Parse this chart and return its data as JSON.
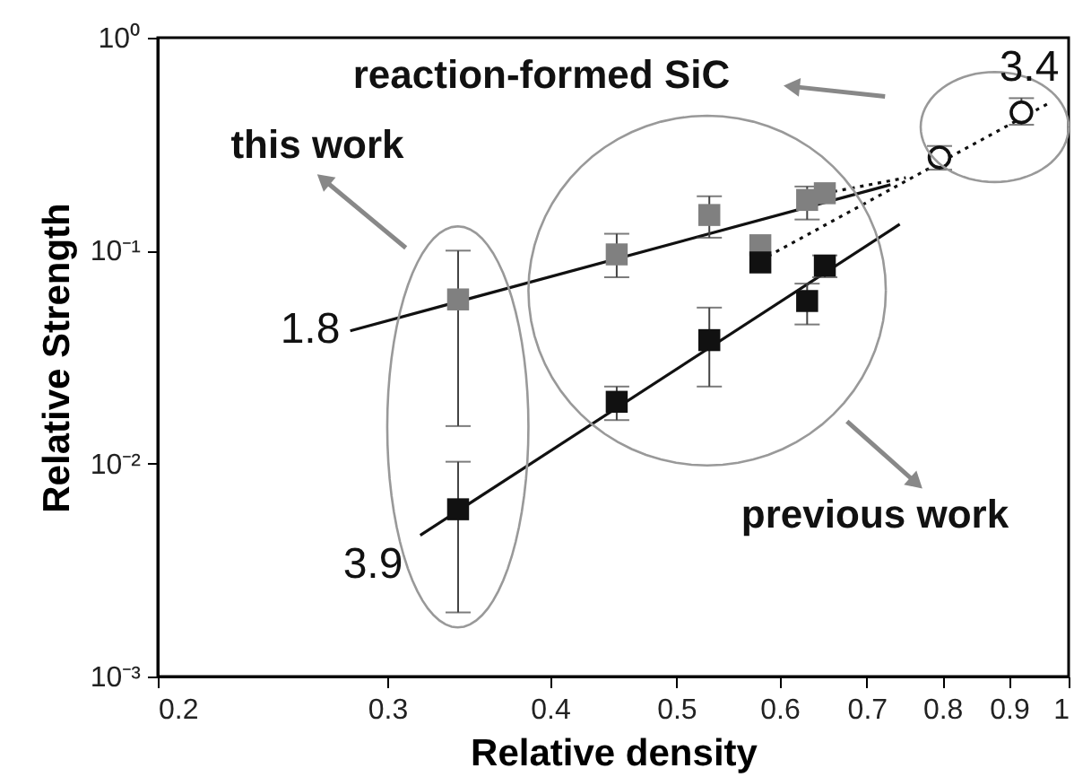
{
  "chart_data": {
    "type": "scatter",
    "xlabel": "Relative density",
    "ylabel": "Relative Strength",
    "log": "xy",
    "grid": false,
    "xlim": [
      0.2,
      1
    ],
    "xticks": [
      0.2,
      0.3,
      0.4,
      0.5,
      0.6,
      0.7,
      0.8,
      0.9,
      1
    ],
    "ylim": [
      0.001,
      1
    ],
    "yticks": [
      {
        "value": 0.001,
        "label": "10⁻³"
      },
      {
        "value": 0.01,
        "label": "10⁻²"
      },
      {
        "value": 0.1,
        "label": "10⁻¹"
      },
      {
        "value": 1,
        "label": "10⁰"
      }
    ],
    "series": [
      {
        "type": "line",
        "color": "#111111",
        "line_style": "solid",
        "marker": "none",
        "x": [
          0.281,
          0.73
        ],
        "values": [
          0.042,
          0.204
        ]
      },
      {
        "type": "line",
        "color": "#111111",
        "line_style": "solid",
        "marker": "none",
        "x": [
          0.318,
          0.742
        ],
        "values": [
          0.0046,
          0.133
        ]
      },
      {
        "type": "line",
        "color": "#111111",
        "line_style": "dotted",
        "marker": "none",
        "x": [
          0.58,
          0.97
        ],
        "values": [
          0.09,
          0.5
        ]
      },
      {
        "type": "line",
        "color": "#111111",
        "line_style": "dotted",
        "marker": "none",
        "x": [
          0.65,
          0.75
        ],
        "values": [
          0.186,
          0.22
        ]
      },
      {
        "type": "scatter",
        "color": "#808080",
        "marker": "square",
        "x": [
          0.34,
          0.45,
          0.53,
          0.58,
          0.63,
          0.65
        ],
        "values": [
          0.059,
          0.096,
          0.147,
          0.106,
          0.173,
          0.186
        ],
        "errors": [
          [
            0.015,
            0.1
          ],
          [
            0.075,
            0.12
          ],
          [
            0.115,
            0.18
          ],
          null,
          [
            0.14,
            0.2
          ],
          null
        ]
      },
      {
        "type": "scatter",
        "color": "#111111",
        "marker": "square",
        "x": [
          0.34,
          0.45,
          0.53,
          0.58,
          0.63,
          0.65
        ],
        "values": [
          0.0061,
          0.0195,
          0.038,
          0.088,
          0.058,
          0.085
        ],
        "errors": [
          [
            0.002,
            0.0102
          ],
          [
            0.016,
            0.023
          ],
          [
            0.023,
            0.054
          ],
          null,
          [
            0.045,
            0.07
          ],
          [
            0.075,
            0.095
          ]
        ]
      },
      {
        "type": "scatter",
        "color": "#111111",
        "marker": "circle",
        "x": [
          0.796,
          0.92
        ],
        "values": [
          0.274,
          0.446
        ],
        "errors": [
          [
            0.24,
            0.31
          ],
          [
            0.39,
            0.52
          ]
        ]
      }
    ],
    "annotations": [
      "reaction-formed SiC",
      "this work",
      "previous work",
      "1.8",
      "3.9",
      "3.4"
    ]
  }
}
